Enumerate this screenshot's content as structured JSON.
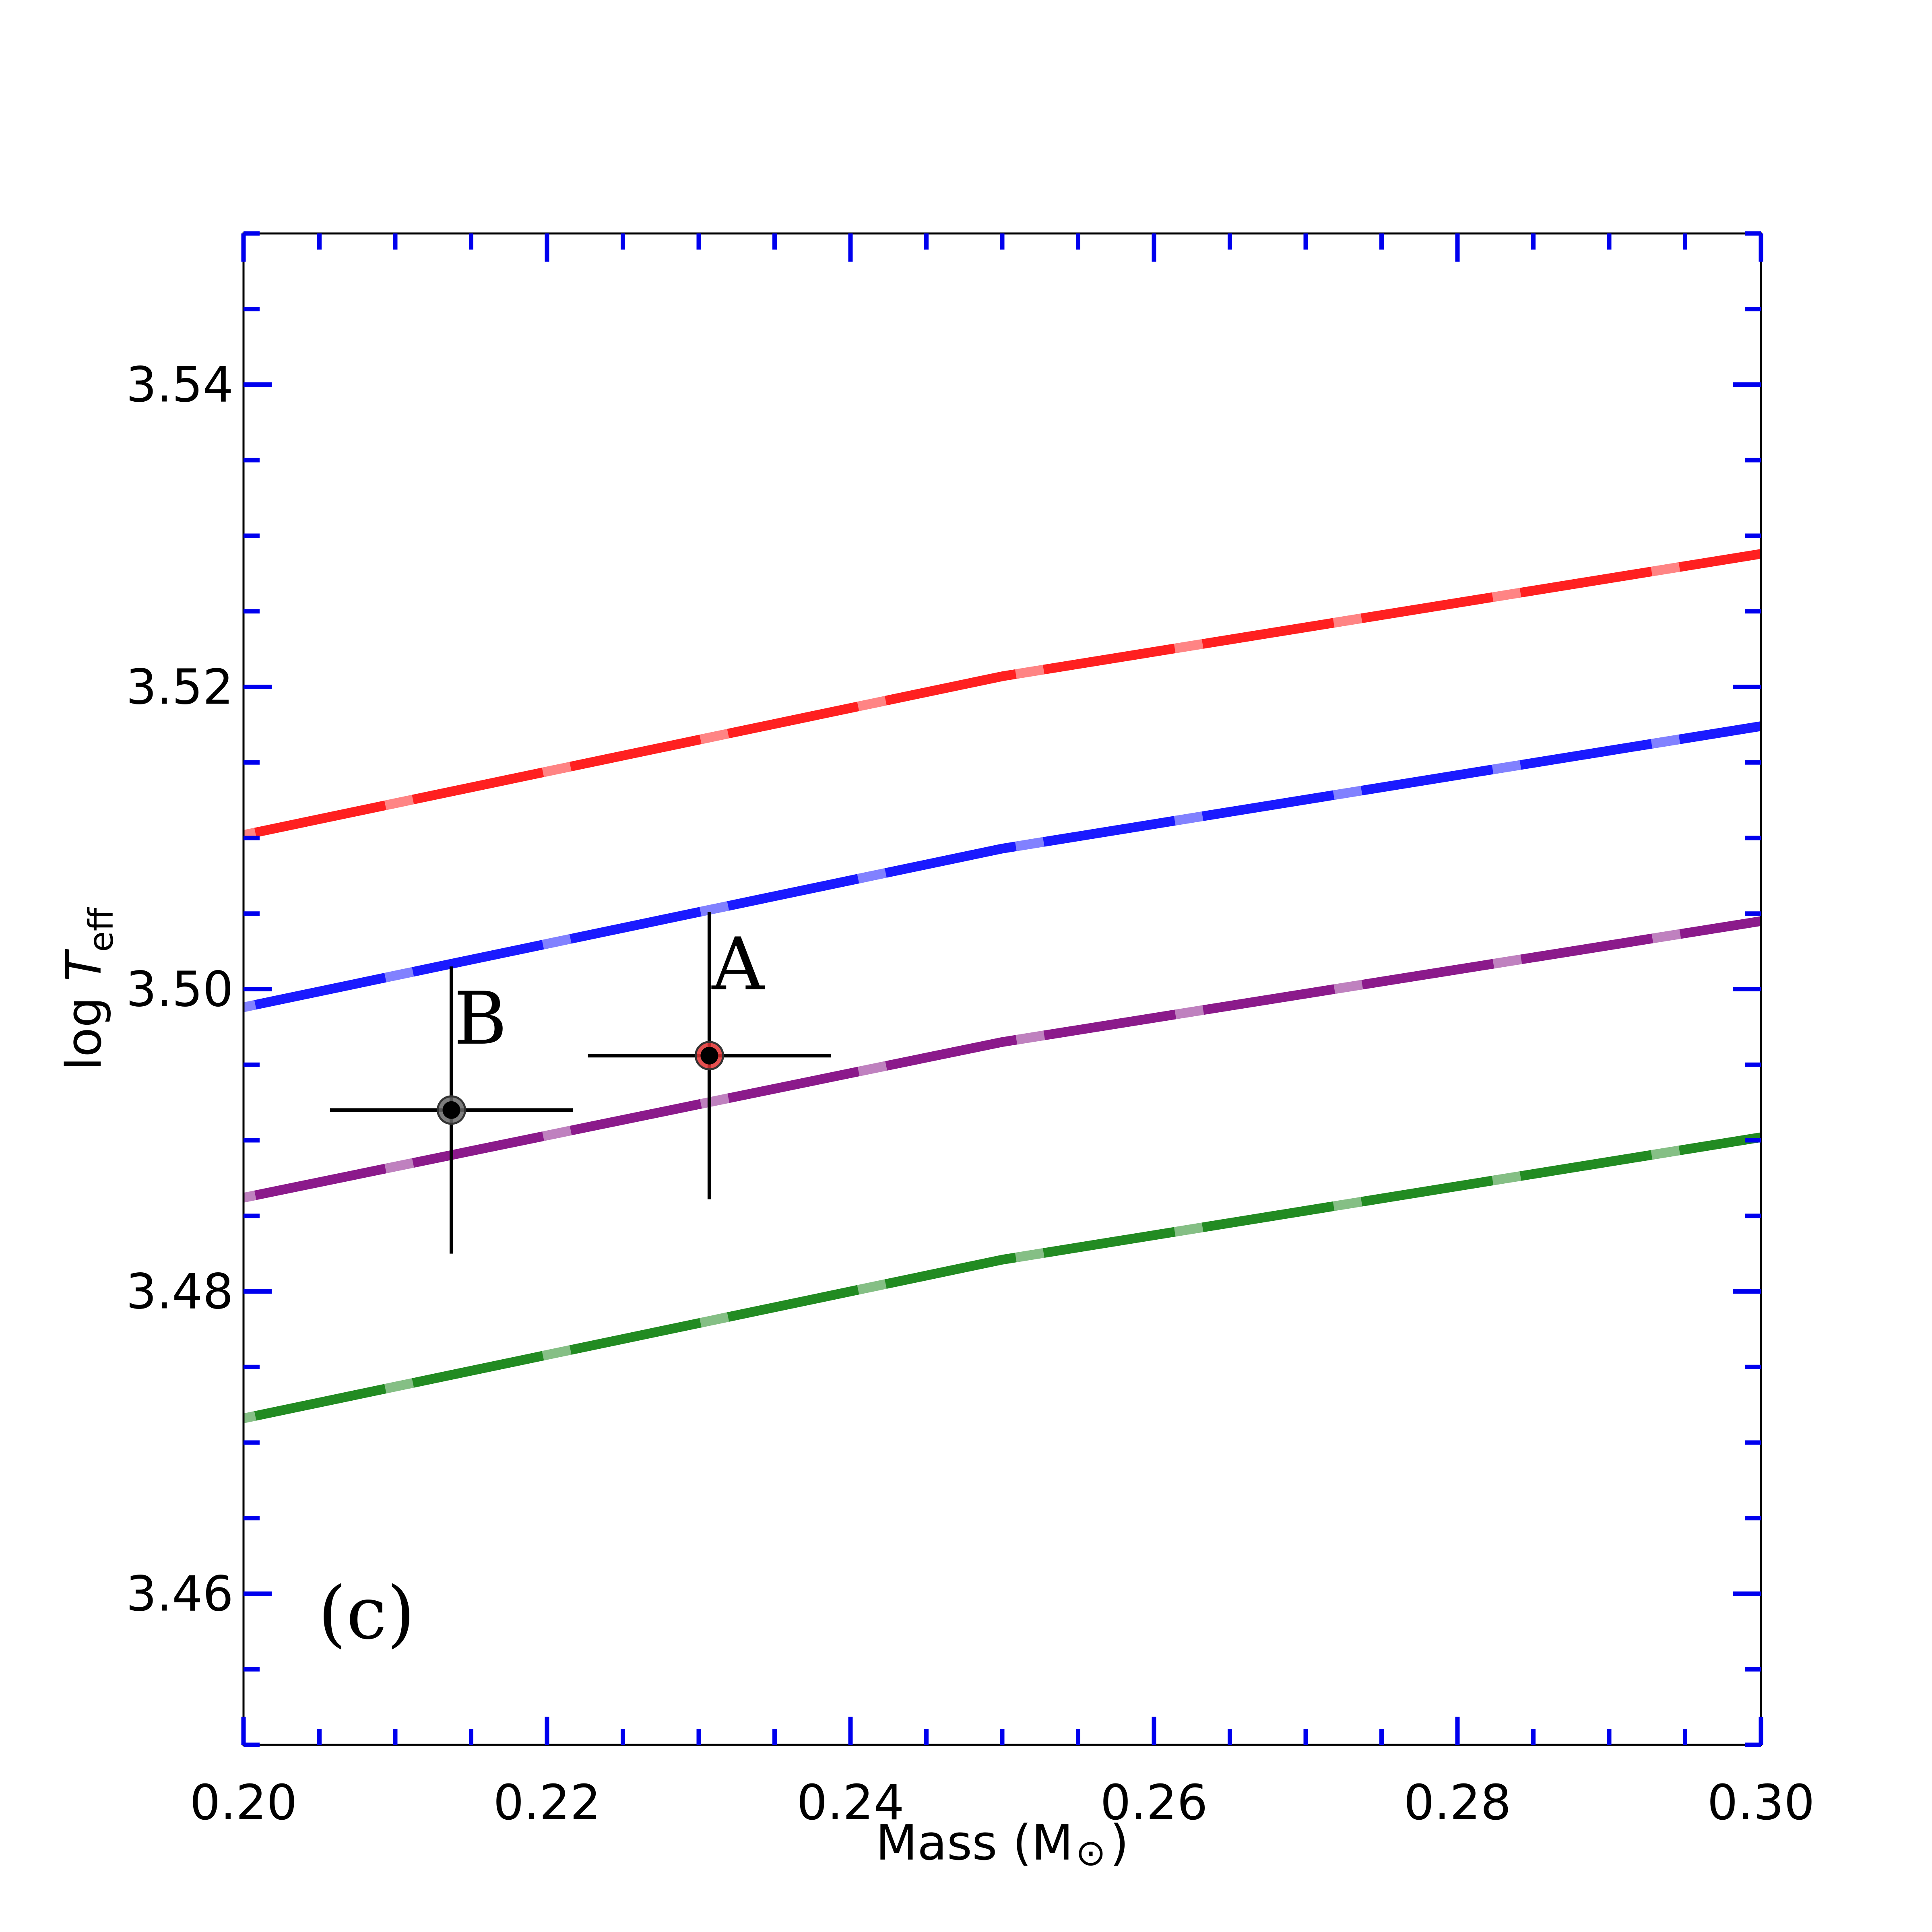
{
  "chart_data": {
    "type": "line",
    "title": "",
    "panel_label": "(c)",
    "xlabel": "Mass (M",
    "xlabel_symbol": "⊙",
    "xlabel_close": ")",
    "ylabel_prefix": "log ",
    "ylabel_var": "T",
    "ylabel_sub": "eff",
    "xlim": [
      0.2,
      0.3
    ],
    "ylim": [
      3.45,
      3.55
    ],
    "x_ticks": [
      "0.20",
      "0.22",
      "0.24",
      "0.26",
      "0.28",
      "0.30"
    ],
    "y_ticks": [
      "3.46",
      "3.48",
      "3.50",
      "3.52",
      "3.54"
    ],
    "series": [
      {
        "color": "#ff2020",
        "x": [
          0.2,
          0.25,
          0.3
        ],
        "y": [
          3.5102,
          3.5207,
          3.5288
        ]
      },
      {
        "color": "#1a1aff",
        "x": [
          0.2,
          0.25,
          0.3
        ],
        "y": [
          3.4988,
          3.5093,
          3.5174
        ]
      },
      {
        "color": "#8b1a8b",
        "x": [
          0.2,
          0.25,
          0.3
        ],
        "y": [
          3.4862,
          3.4965,
          3.5045
        ]
      },
      {
        "color": "#228b22",
        "x": [
          0.2,
          0.25,
          0.3
        ],
        "y": [
          3.4716,
          3.4821,
          3.4902
        ]
      }
    ],
    "points": [
      {
        "label": "A",
        "x": 0.2307,
        "y": 3.4956,
        "xerr": 0.008,
        "yerr": 0.0095,
        "ring_color": "#e03030"
      },
      {
        "label": "B",
        "x": 0.2137,
        "y": 3.492,
        "xerr": 0.008,
        "yerr": 0.0095,
        "ring_color": "#666666"
      }
    ],
    "accent_tick_color": "#0000ee"
  }
}
